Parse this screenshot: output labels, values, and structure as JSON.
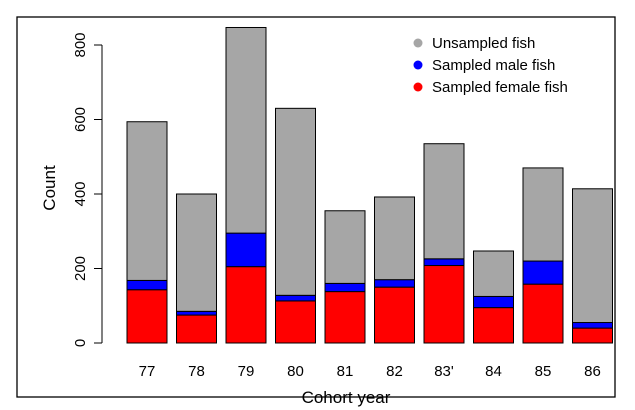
{
  "chart_data": {
    "type": "bar",
    "stacked": true,
    "categories": [
      "77",
      "78",
      "79",
      "80",
      "81",
      "82",
      "83'",
      "84",
      "85",
      "86"
    ],
    "series": [
      {
        "name": "Sampled female fish",
        "color": "#ff0000",
        "values": [
          143,
          75,
          205,
          113,
          138,
          150,
          208,
          95,
          158,
          40
        ]
      },
      {
        "name": "Sampled male fish",
        "color": "#0000ff",
        "values": [
          25,
          10,
          90,
          15,
          22,
          20,
          18,
          30,
          62,
          15
        ]
      },
      {
        "name": "Unsampled fish",
        "color": "#a6a6a6",
        "values": [
          426,
          315,
          552,
          502,
          195,
          222,
          309,
          122,
          250,
          359
        ]
      }
    ],
    "legend_order": [
      "Unsampled fish",
      "Sampled male fish",
      "Sampled female fish"
    ],
    "legend_position": "top-right",
    "title": "",
    "xlabel": "Cohort year",
    "ylabel": "Count",
    "yticks": [
      0,
      200,
      400,
      600,
      800
    ],
    "ylim": [
      0,
      860
    ],
    "grid": false
  }
}
